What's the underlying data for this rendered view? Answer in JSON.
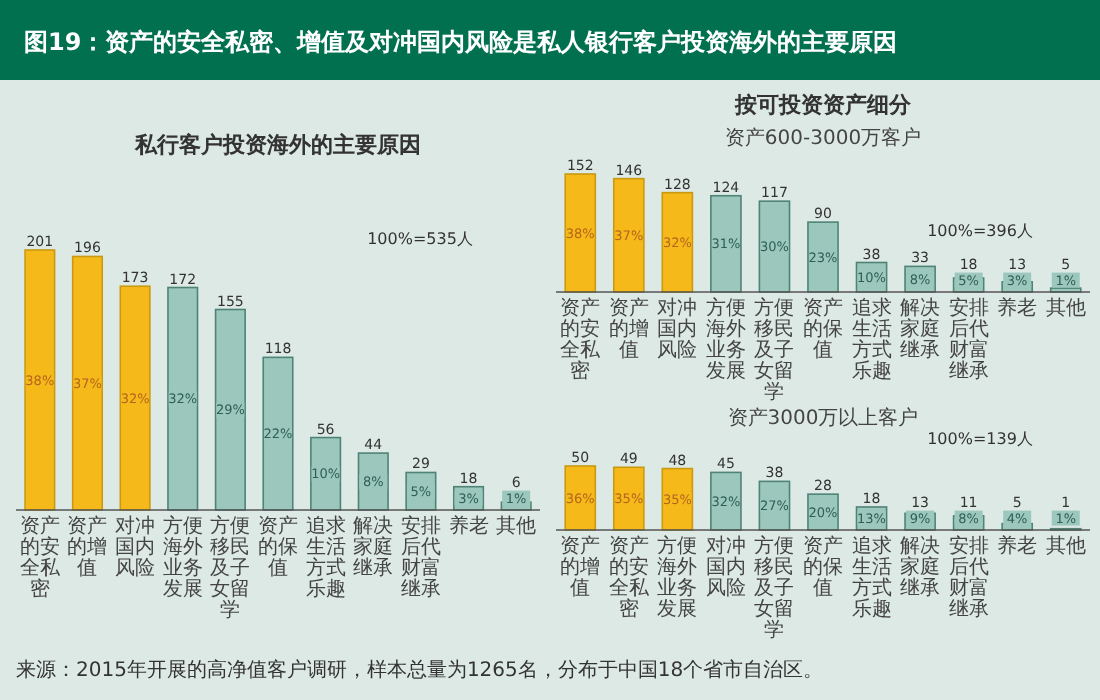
{
  "chart_data": [
    {
      "type": "bar",
      "title": "图19：资产的安全私密、增值及对冲国内风险是私人银行客户投资海外的主要原因",
      "subtitle": "私行客户投资海外的主要原因",
      "categories": [
        "资产的安全私密",
        "资产的增值",
        "对冲国内风险",
        "方便海外业务发展",
        "方便移民及子女留学",
        "资产的保值",
        "追求生活方式乐趣",
        "解决家庭继承",
        "安排后代财富继承",
        "养老",
        "其他"
      ],
      "values": [
        201,
        196,
        173,
        172,
        155,
        118,
        56,
        44,
        29,
        18,
        6
      ],
      "colors": [
        "#f5b91a",
        "#f5b91a",
        "#f5b91a",
        "#9cc7bd",
        "#9cc7bd",
        "#9cc7bd",
        "#9cc7bd",
        "#9cc7bd",
        "#9cc7bd",
        "#9cc7bd",
        "#9cc7bd"
      ],
      "tick_labels": "x",
      "data_labels": true,
      "annotations": [
        "100%=535人",
        "38%",
        "37%",
        "32%",
        "32%",
        "29%",
        "22%",
        "10%",
        "8%",
        "5%",
        "3%",
        "1%",
        "来源：2015年开展的高净值客户调研，样本总量为1265名，分布于中国18个省市自治区。"
      ]
    },
    {
      "type": "bar",
      "title": "按可投资资产细分",
      "subtitle": "资产600-3000万客户",
      "categories": [
        "资产的安全私密",
        "资产的增值",
        "对冲国内风险",
        "方便海外业务发展",
        "方便移民及子女留学",
        "资产的保值",
        "追求生活方式乐趣",
        "解决家庭继承",
        "安排后代财富继承",
        "养老",
        "其他"
      ],
      "values": [
        152,
        146,
        128,
        124,
        117,
        90,
        38,
        33,
        18,
        13,
        5
      ],
      "colors": [
        "#f5b91a",
        "#f5b91a",
        "#f5b91a",
        "#9cc7bd",
        "#9cc7bd",
        "#9cc7bd",
        "#9cc7bd",
        "#9cc7bd",
        "#9cc7bd",
        "#9cc7bd",
        "#9cc7bd"
      ],
      "tick_labels": "x",
      "data_labels": true,
      "annotations": [
        "100%=396人",
        "38%",
        "37%",
        "32%",
        "31%",
        "30%",
        "23%",
        "10%",
        "8%",
        "5%",
        "3%",
        "1%"
      ]
    },
    {
      "type": "bar",
      "subtitle": "资产3000万以上客户",
      "categories": [
        "资产的增值",
        "资产的安全私密",
        "方便海外业务发展",
        "对冲国内风险",
        "方便移民及子女留学",
        "资产的保值",
        "追求生活方式乐趣",
        "解决家庭继承",
        "安排后代财富继承",
        "养老",
        "其他"
      ],
      "values": [
        50,
        49,
        48,
        45,
        38,
        28,
        18,
        13,
        11,
        5,
        1
      ],
      "value_labels": [
        "50",
        "49",
        "48",
        "45",
        "38",
        "28",
        "18",
        "13",
        "11",
        "5",
        "1"
      ],
      "colors": [
        "#f5b91a",
        "#f5b91a",
        "#f5b91a",
        "#9cc7bd",
        "#9cc7bd",
        "#9cc7bd",
        "#9cc7bd",
        "#9cc7bd",
        "#9cc7bd",
        "#9cc7bd",
        "#9cc7bd"
      ],
      "tick_labels": "x",
      "annotations": [
        "100%=139人",
        "36%",
        "35%",
        "35%",
        "32%",
        "27%",
        "20%",
        "13%",
        "9%",
        "8%",
        "4%",
        "1%"
      ]
    }
  ]
}
